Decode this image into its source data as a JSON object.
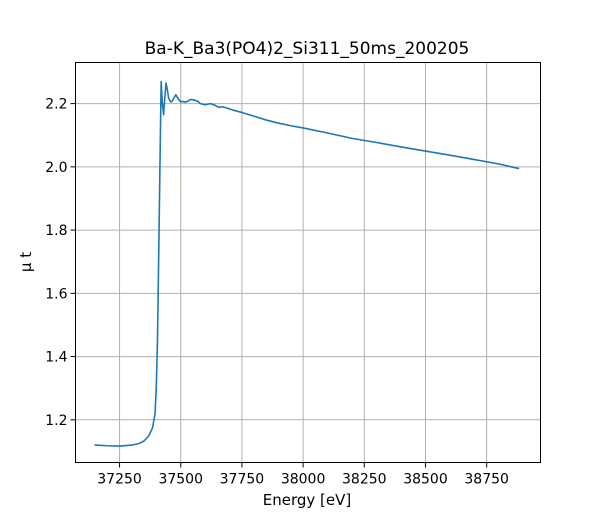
{
  "chart_data": {
    "type": "line",
    "title": "Ba-K_Ba3(PO4)2_Si311_50ms_200205",
    "xlabel": "Energy [eV]",
    "ylabel": "μ t",
    "xlim": [
      37070,
      38970
    ],
    "ylim": [
      1.065,
      2.33
    ],
    "xticks": [
      37250,
      37500,
      37750,
      38000,
      38250,
      38500,
      38750
    ],
    "xtick_labels": [
      "37250",
      "37500",
      "37750",
      "38000",
      "38250",
      "38500",
      "38750"
    ],
    "yticks": [
      1.2,
      1.4,
      1.6,
      1.8,
      2.0,
      2.2
    ],
    "ytick_labels": [
      "1.2",
      "1.4",
      "1.6",
      "1.8",
      "2.0",
      "2.2"
    ],
    "grid": true,
    "series": [
      {
        "color": "#1f77b4",
        "x": [
          37150,
          37200,
          37250,
          37300,
          37330,
          37350,
          37370,
          37385,
          37395,
          37400,
          37405,
          37410,
          37415,
          37420,
          37425,
          37430,
          37435,
          37440,
          37445,
          37450,
          37455,
          37460,
          37465,
          37470,
          37480,
          37490,
          37500,
          37505,
          37510,
          37520,
          37530,
          37540,
          37550,
          37560,
          37570,
          37580,
          37600,
          37620,
          37640,
          37650,
          37660,
          37670,
          37680,
          37700,
          37720,
          37750,
          37800,
          37850,
          37900,
          37950,
          38000,
          38100,
          38200,
          38300,
          38400,
          38500,
          38600,
          38700,
          38800,
          38880
        ],
        "y": [
          1.12,
          1.118,
          1.117,
          1.12,
          1.125,
          1.133,
          1.15,
          1.175,
          1.22,
          1.3,
          1.45,
          1.72,
          2.0,
          2.27,
          2.2,
          2.165,
          2.22,
          2.265,
          2.245,
          2.22,
          2.21,
          2.205,
          2.208,
          2.215,
          2.228,
          2.215,
          2.205,
          2.207,
          2.206,
          2.205,
          2.208,
          2.213,
          2.212,
          2.21,
          2.207,
          2.2,
          2.196,
          2.2,
          2.195,
          2.19,
          2.188,
          2.19,
          2.188,
          2.183,
          2.178,
          2.172,
          2.16,
          2.148,
          2.138,
          2.13,
          2.123,
          2.107,
          2.09,
          2.077,
          2.063,
          2.05,
          2.037,
          2.023,
          2.009,
          1.995
        ]
      }
    ]
  }
}
